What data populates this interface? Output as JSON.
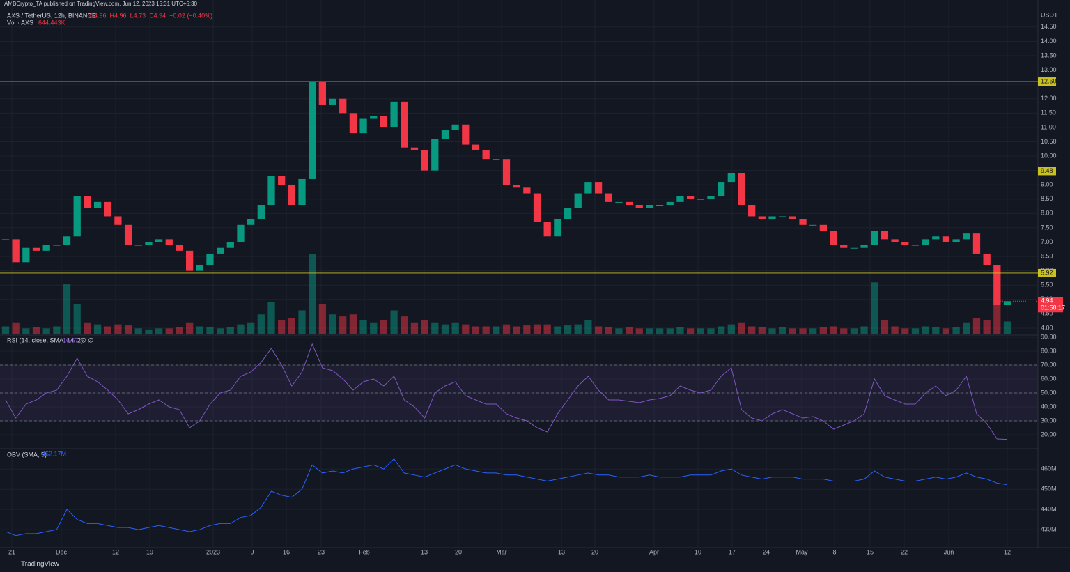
{
  "header": {
    "published": "AMBCrypto_TA published on TradingView.com, Jun 12, 2023 15:31 UTC+5:30",
    "symbol": "AXS / TetherUS, 12h, BINANCE",
    "ohlc": [
      "O4.96",
      "H4.96",
      "L4.73",
      "C4.94",
      "−0.02 (−0.40%)"
    ],
    "volume_label": "Vol · AXS",
    "volume_value": "644.443K",
    "currency": "USDT",
    "brand": "TradingView"
  },
  "chart_data": [
    {
      "type": "candlestick",
      "name": "price",
      "close": [
        7.1,
        6.3,
        6.8,
        6.7,
        6.9,
        6.9,
        7.2,
        8.6,
        8.2,
        8.4,
        7.9,
        7.6,
        6.9,
        6.9,
        7.0,
        7.1,
        6.9,
        6.7,
        6.0,
        6.2,
        6.6,
        6.8,
        7.0,
        7.6,
        7.8,
        8.3,
        9.3,
        9.0,
        8.3,
        9.2,
        12.6,
        11.8,
        12.0,
        11.5,
        10.8,
        11.3,
        11.4,
        11.0,
        11.9,
        10.3,
        10.2,
        9.5,
        10.6,
        10.9,
        11.1,
        10.4,
        10.2,
        9.9,
        9.9,
        9.0,
        8.9,
        8.7,
        7.7,
        7.2,
        7.8,
        8.2,
        8.7,
        9.1,
        8.7,
        8.4,
        8.4,
        8.3,
        8.2,
        8.3,
        8.3,
        8.4,
        8.6,
        8.5,
        8.5,
        8.6,
        9.1,
        9.4,
        8.3,
        7.9,
        7.8,
        7.9,
        7.9,
        7.8,
        7.6,
        7.6,
        7.4,
        6.9,
        6.8,
        6.8,
        6.9,
        7.4,
        7.1,
        7.0,
        6.9,
        6.9,
        7.1,
        7.2,
        7.0,
        7.1,
        7.3,
        6.6,
        6.2,
        4.8,
        4.94
      ],
      "volume": [
        400,
        600,
        300,
        350,
        300,
        400,
        2500,
        1500,
        600,
        500,
        400,
        500,
        450,
        300,
        250,
        300,
        300,
        350,
        600,
        400,
        350,
        300,
        350,
        500,
        600,
        1000,
        1600,
        700,
        800,
        1200,
        4000,
        1500,
        1000,
        900,
        1000,
        700,
        600,
        700,
        1200,
        900,
        600,
        700,
        600,
        500,
        600,
        500,
        400,
        400,
        400,
        500,
        400,
        450,
        500,
        500,
        400,
        450,
        500,
        700,
        400,
        350,
        300,
        350,
        300,
        300,
        300,
        300,
        350,
        300,
        300,
        300,
        400,
        500,
        600,
        400,
        350,
        300,
        350,
        300,
        300,
        300,
        350,
        400,
        300,
        300,
        400,
        2600,
        700,
        400,
        300,
        300,
        400,
        350,
        300,
        350,
        600,
        800,
        700,
        1500,
        644.443
      ],
      "up_color": "#089981",
      "down_color": "#f23645",
      "ylim": [
        3.78,
        15.08
      ],
      "yticks": [
        {
          "value": 4,
          "label": "4.00"
        },
        {
          "value": 4.5,
          "label": "4.50"
        },
        {
          "value": 5,
          "label": "5.00"
        },
        {
          "value": 5.5,
          "label": "5.50"
        },
        {
          "value": 6,
          "label": "6.00"
        },
        {
          "value": 6.5,
          "label": "6.50"
        },
        {
          "value": 7,
          "label": "7.00"
        },
        {
          "value": 7.5,
          "label": "7.50"
        },
        {
          "value": 8,
          "label": "8.00"
        },
        {
          "value": 8.5,
          "label": "8.50"
        },
        {
          "value": 9,
          "label": "9.00"
        },
        {
          "value": 9.5,
          "label": "9.50"
        },
        {
          "value": 10,
          "label": "10.00"
        },
        {
          "value": 10.5,
          "label": "10.50"
        },
        {
          "value": 11,
          "label": "11.00"
        },
        {
          "value": 11.5,
          "label": "11.50"
        },
        {
          "value": 12,
          "label": "12.00"
        },
        {
          "value": 12.5,
          "label": "12.50"
        },
        {
          "value": 13,
          "label": "13.00"
        },
        {
          "value": 13.5,
          "label": "13.50"
        },
        {
          "value": 14,
          "label": "14.00"
        },
        {
          "value": 14.5,
          "label": "14.50"
        }
      ],
      "levels": [
        {
          "value": 12.6,
          "label": "12.60"
        },
        {
          "value": 9.48,
          "label": "9.48"
        },
        {
          "value": 5.92,
          "label": "5.92"
        }
      ],
      "level_color": "#c9c11f",
      "last": {
        "value": 4.94,
        "label": "4.94",
        "countdown": "01:58:17"
      },
      "x_labels": [
        "21",
        "Dec",
        "12",
        "19",
        "2023",
        "9",
        "16",
        "23",
        "Feb",
        "13",
        "20",
        "Mar",
        "13",
        "20",
        "Apr",
        "10",
        "17",
        "24",
        "May",
        "8",
        "15",
        "22",
        "Jun",
        "12"
      ]
    },
    {
      "type": "line",
      "name": "rsi",
      "title": "RSI (14, close, SMA, 14, 2)",
      "value_label": "16.67",
      "extra": "∅ ∅",
      "color": "#7e57c2",
      "values": [
        45,
        32,
        42,
        45,
        50,
        52,
        62,
        75,
        62,
        58,
        52,
        45,
        35,
        38,
        42,
        45,
        40,
        38,
        25,
        30,
        42,
        50,
        52,
        62,
        65,
        72,
        82,
        70,
        55,
        65,
        85,
        68,
        66,
        60,
        52,
        58,
        60,
        55,
        62,
        45,
        40,
        32,
        50,
        55,
        58,
        48,
        45,
        42,
        42,
        35,
        32,
        30,
        25,
        22,
        35,
        45,
        55,
        62,
        52,
        45,
        45,
        44,
        43,
        45,
        46,
        48,
        55,
        52,
        50,
        52,
        62,
        68,
        38,
        32,
        30,
        35,
        38,
        35,
        32,
        33,
        30,
        24,
        27,
        30,
        35,
        60,
        48,
        45,
        42,
        42,
        50,
        55,
        48,
        52,
        62,
        35,
        28,
        17,
        16.67
      ],
      "bands": [
        70,
        50,
        30
      ],
      "ylim": [
        10.5,
        91
      ],
      "yticks": [
        {
          "value": 20,
          "label": "20.00"
        },
        {
          "value": 30,
          "label": "30.00"
        },
        {
          "value": 40,
          "label": "40.00"
        },
        {
          "value": 50,
          "label": "50.00"
        },
        {
          "value": 60,
          "label": "60.00"
        },
        {
          "value": 70,
          "label": "70.00"
        },
        {
          "value": 80,
          "label": "80.00"
        },
        {
          "value": 90,
          "label": "90.00"
        }
      ]
    },
    {
      "type": "line",
      "name": "obv",
      "title": "OBV (SMA, 5)",
      "value_label": "452.17M",
      "color": "#2962ff",
      "values": [
        429,
        427,
        428,
        428,
        429,
        430,
        440,
        435,
        433,
        433,
        432,
        431,
        431,
        430,
        431,
        432,
        431,
        430,
        429,
        430,
        432,
        433,
        433,
        436,
        437,
        441,
        449,
        447,
        446,
        450,
        462,
        458,
        459,
        458,
        460,
        461,
        462,
        460,
        465,
        458,
        457,
        456,
        458,
        460,
        462,
        460,
        459,
        458,
        458,
        457,
        457,
        456,
        455,
        454,
        455,
        456,
        457,
        458,
        457,
        457,
        456,
        456,
        456,
        457,
        456,
        456,
        456,
        457,
        457,
        457,
        459,
        460,
        457,
        456,
        455,
        456,
        456,
        456,
        455,
        455,
        455,
        454,
        454,
        454,
        455,
        459,
        456,
        455,
        454,
        454,
        455,
        456,
        455,
        456,
        458,
        456,
        455,
        453,
        452.17
      ],
      "ylim": [
        421.4,
        469.7
      ],
      "yticks": [
        {
          "value": 430,
          "label": "430M"
        },
        {
          "value": 440,
          "label": "440M"
        },
        {
          "value": 450,
          "label": "450M"
        },
        {
          "value": 460,
          "label": "460M"
        }
      ]
    }
  ]
}
